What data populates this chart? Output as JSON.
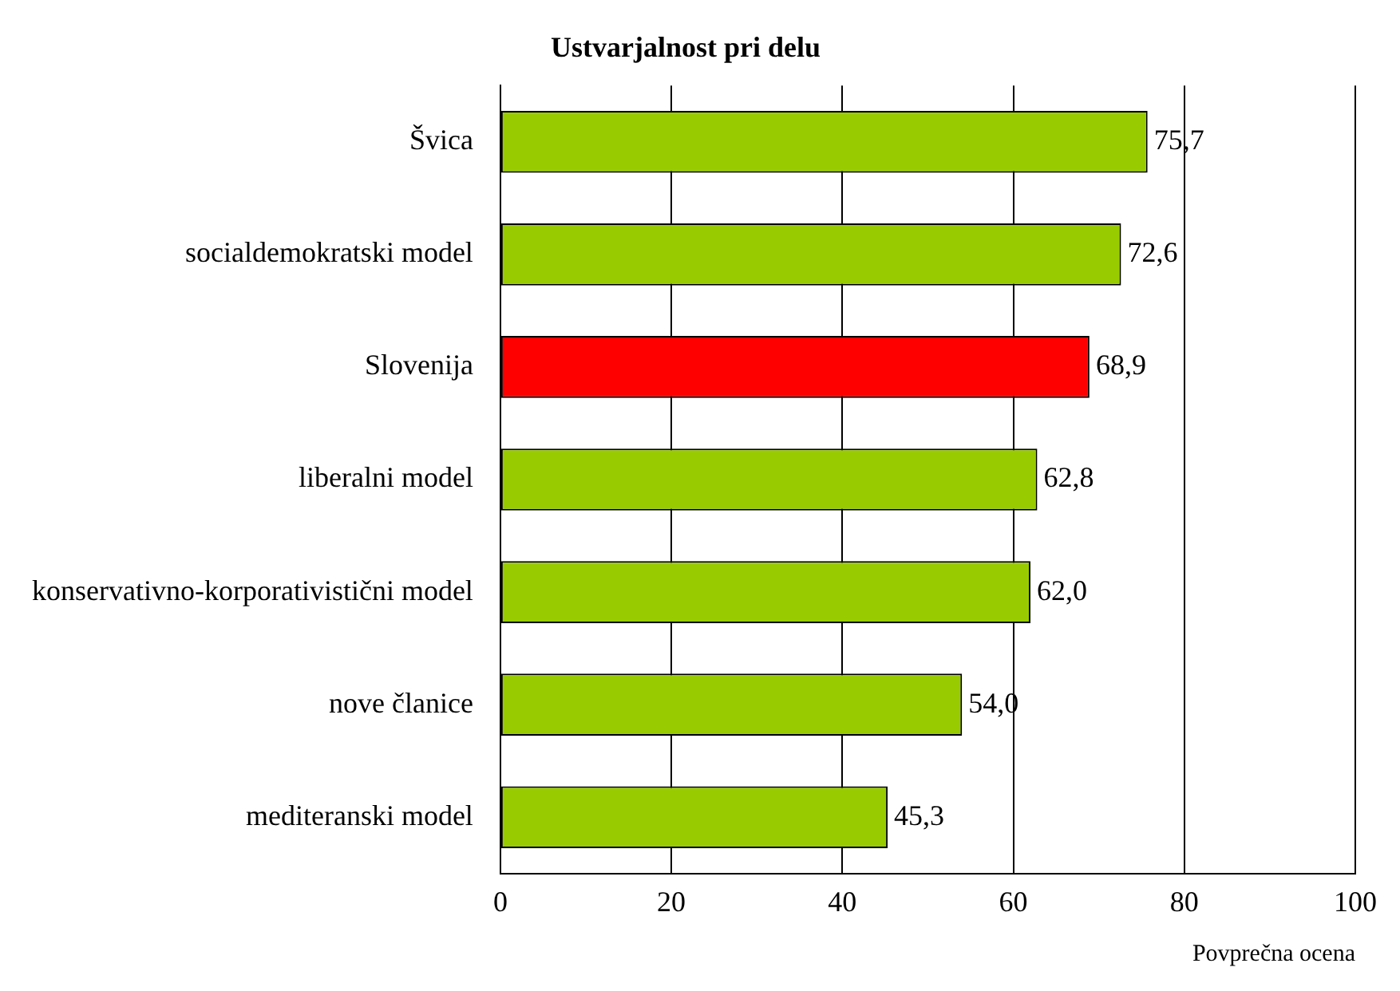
{
  "chart_data": {
    "type": "bar",
    "orientation": "horizontal",
    "title": "Ustvarjalnost pri delu",
    "xlabel": "Povprečna ocena",
    "categories": [
      "Švica",
      "socialdemokratski model",
      "Slovenija",
      "liberalni model",
      "konservativno-korporativistični model",
      "nove članice",
      "mediteranski model"
    ],
    "values": [
      75.7,
      72.6,
      68.9,
      62.8,
      62.0,
      54.0,
      45.3
    ],
    "colors": [
      "#99cc00",
      "#99cc00",
      "#ff0000",
      "#99cc00",
      "#99cc00",
      "#99cc00",
      "#99cc00"
    ],
    "value_labels": [
      "75,7",
      "72,6",
      "68,9",
      "62,8",
      "62,0",
      "54,0",
      "45,3"
    ],
    "xlim": [
      0,
      100
    ],
    "xticks": [
      0,
      20,
      40,
      60,
      80,
      100
    ],
    "grid": "x",
    "legend": false
  }
}
